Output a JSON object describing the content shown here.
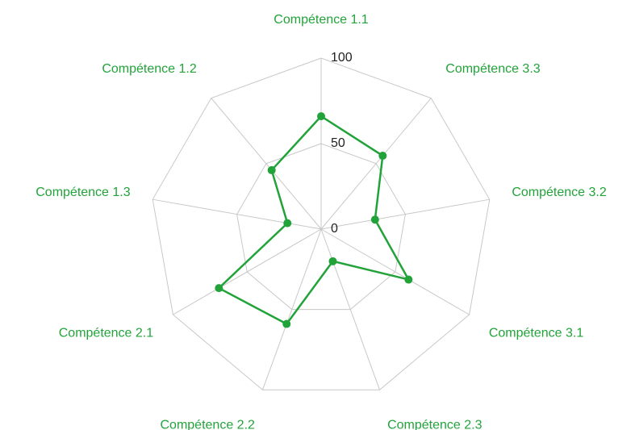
{
  "chart_data": {
    "type": "radar",
    "categories": [
      "Compétence 1.1",
      "Compétence 1.2",
      "Compétence 1.3",
      "Compétence 2.1",
      "Compétence 2.2",
      "Compétence 2.3",
      "Compétence 3.1",
      "Compétence 3.2",
      "Compétence 3.3"
    ],
    "values": [
      66,
      45,
      20,
      69,
      59,
      20,
      59,
      32,
      56
    ],
    "color": "#22a33a",
    "ylim": [
      0,
      100
    ],
    "yticks": [
      0,
      50,
      100
    ],
    "grid": true
  }
}
